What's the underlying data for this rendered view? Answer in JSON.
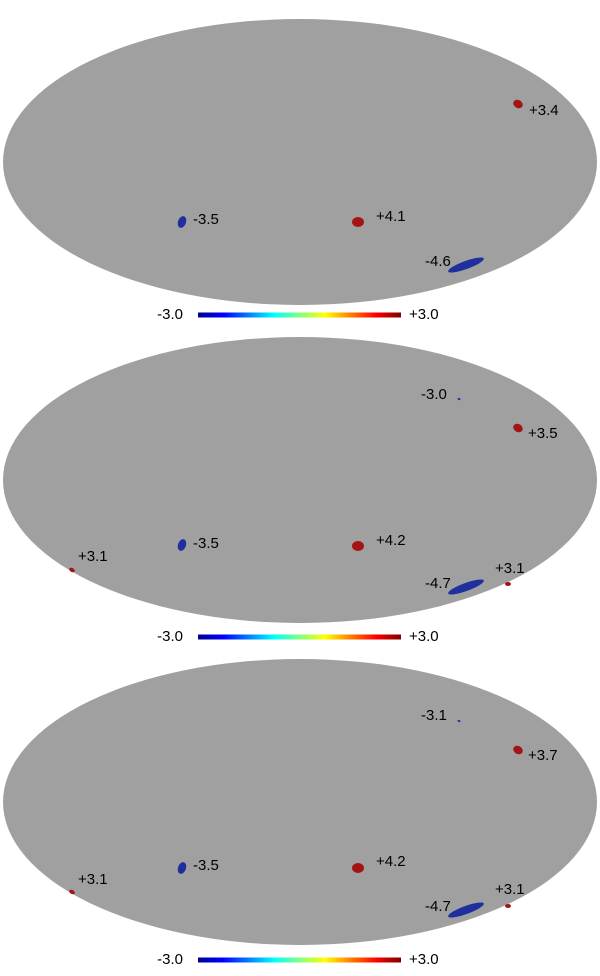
{
  "panels": [
    {
      "labels": [
        "+3.4",
        "-3.5",
        "+4.1",
        "-4.6"
      ],
      "colorbar": {
        "min": "-3.0",
        "max": "+3.0"
      }
    },
    {
      "labels": [
        "-3.0",
        "+3.5",
        "+3.1",
        "-3.5",
        "+4.2",
        "-4.7",
        "+3.1"
      ],
      "colorbar": {
        "min": "-3.0",
        "max": "+3.0"
      }
    },
    {
      "labels": [
        "-3.1",
        "+3.7",
        "+3.1",
        "-3.5",
        "+4.2",
        "-4.7",
        "+3.1"
      ],
      "colorbar": {
        "min": "-3.0",
        "max": "+3.0"
      }
    }
  ]
}
